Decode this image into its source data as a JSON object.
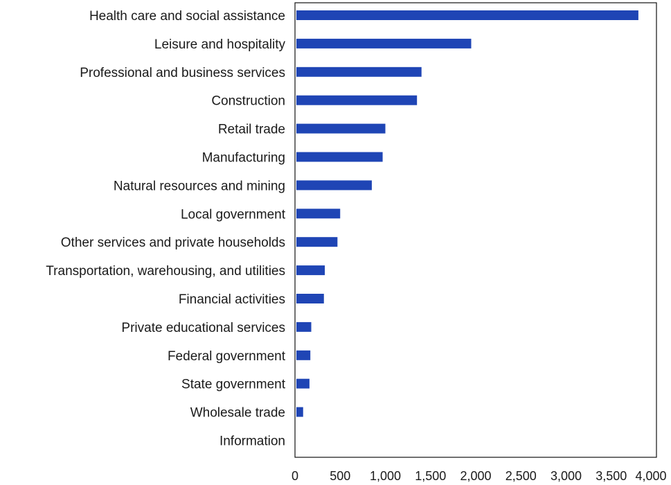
{
  "colors": {
    "bar": "#1f45b5",
    "frame": "#111111",
    "background": "#ffffff"
  },
  "chart_data": {
    "type": "bar",
    "orientation": "horizontal",
    "title": "",
    "xlabel": "",
    "ylabel": "",
    "categories": [
      "Health care and social assistance",
      "Leisure and hospitality",
      "Professional and business services",
      "Construction",
      "Retail trade",
      "Manufacturing",
      "Natural resources and mining",
      "Local government",
      "Other services and private households",
      "Transportation, warehousing, and utilities",
      "Financial activities",
      "Private educational services",
      "Federal government",
      "State government",
      "Wholesale trade",
      "Information"
    ],
    "values": [
      3800,
      1950,
      1400,
      1350,
      1000,
      970,
      850,
      500,
      470,
      330,
      320,
      180,
      170,
      160,
      90,
      0
    ],
    "xlim": [
      0,
      4000
    ],
    "xticks": [
      "0",
      "500",
      "1,000",
      "1,500",
      "2,000",
      "2,500",
      "3,000",
      "3,500",
      "4,000"
    ],
    "grid": false,
    "legend": "none"
  }
}
